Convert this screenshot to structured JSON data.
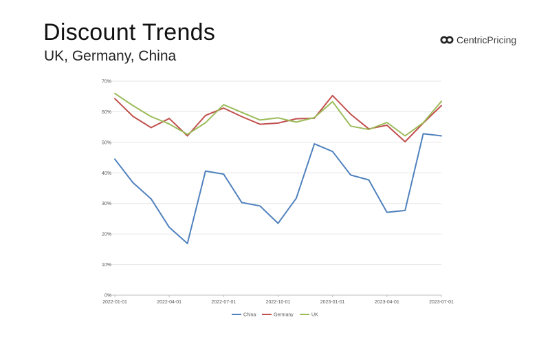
{
  "header": {
    "title": "Discount Trends",
    "subtitle": "UK, Germany, China",
    "brand_part1": "Centric",
    "brand_part2": "Pricing",
    "brand_logo_icon": "twin-circles-logo-icon"
  },
  "chart_data": {
    "type": "line",
    "x": [
      "2022-01-01",
      "2022-02-01",
      "2022-03-01",
      "2022-04-01",
      "2022-05-01",
      "2022-06-01",
      "2022-07-01",
      "2022-08-01",
      "2022-09-01",
      "2022-10-01",
      "2022-11-01",
      "2022-12-01",
      "2023-01-01",
      "2023-02-01",
      "2023-03-01",
      "2023-04-01",
      "2023-05-01",
      "2023-06-01",
      "2023-07-01"
    ],
    "x_tick_labels": [
      "2022-01-01",
      "2022-04-01",
      "2022-07-01",
      "2022-10-01",
      "2023-01-01",
      "2023-04-01",
      "2023-07-01"
    ],
    "y_tick_labels": [
      "0%",
      "10%",
      "20%",
      "30%",
      "40%",
      "50%",
      "60%",
      "70%"
    ],
    "ylim": [
      0,
      70
    ],
    "grid": true,
    "legend_position": "bottom",
    "series": [
      {
        "name": "China",
        "color": "#4F81BD",
        "values": [
          44.5,
          36.8,
          31.5,
          22.2,
          16.9,
          40.6,
          39.6,
          30.3,
          29.2,
          23.5,
          31.7,
          49.5,
          47.0,
          39.3,
          37.7,
          27.1,
          27.7,
          52.8,
          52.1
        ]
      },
      {
        "name": "Germany",
        "color": "#C0504D",
        "values": [
          64.3,
          58.5,
          54.8,
          57.8,
          52.1,
          58.8,
          61.2,
          58.4,
          55.9,
          56.3,
          57.7,
          57.9,
          65.3,
          59.2,
          54.4,
          55.6,
          50.2,
          56.3,
          62.0
        ]
      },
      {
        "name": "UK",
        "color": "#9BBB59",
        "values": [
          66.0,
          62.0,
          58.4,
          56.0,
          52.6,
          56.4,
          62.3,
          59.8,
          57.3,
          58.0,
          56.6,
          58.1,
          63.3,
          55.3,
          54.2,
          56.5,
          52.1,
          56.4,
          63.4
        ]
      }
    ]
  }
}
